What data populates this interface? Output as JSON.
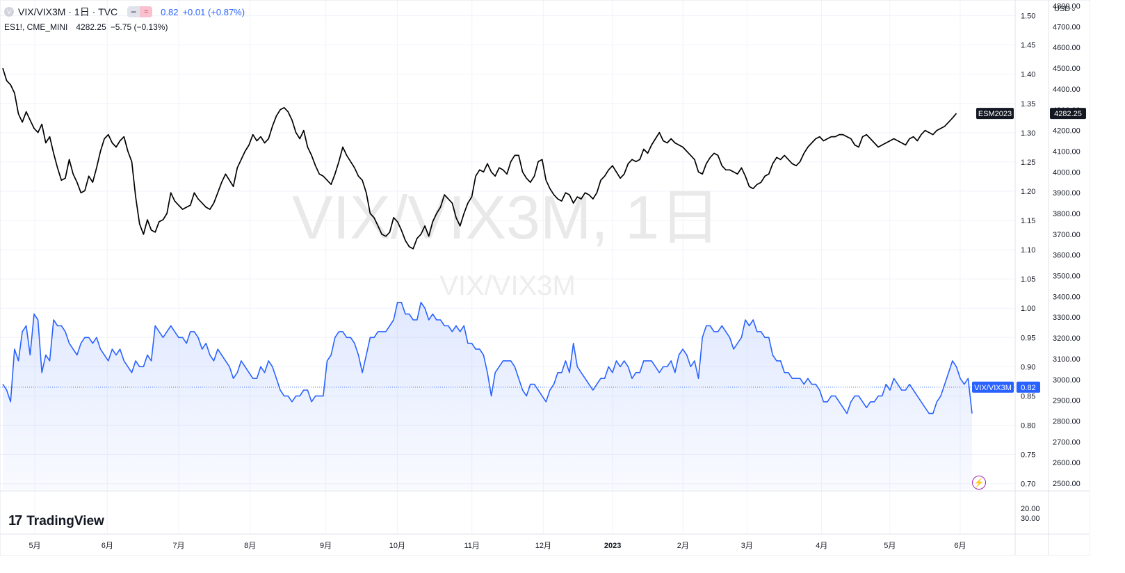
{
  "legend": {
    "main_symbol": "VIX/VIX3M · 1日 · TVC",
    "main_last": "0.82",
    "main_change": "+0.01 (+0.87%)",
    "compare_symbol": "ES1!, CME_MINI",
    "compare_last": "4282.25",
    "compare_change": "−5.75 (−0.13%)"
  },
  "watermark": {
    "big": "VIX/VIX3M, 1日",
    "small": "VIX/VIX3M"
  },
  "currency": "USD",
  "currency_chevron_icon": "chevron-down-icon",
  "brand": {
    "logo_mark": "17",
    "name": "TradingView"
  },
  "icons": {
    "symbol": "symbol-circle-icon",
    "bolt": "lightning-icon"
  },
  "colors": {
    "vix": "#2962ff",
    "es": "#000000",
    "fill": "#2962ff",
    "grid": "#f0f3fa",
    "es_label": "#131722"
  },
  "chart_data": {
    "type": "line",
    "x_ticks": [
      "5月",
      "6月",
      "7月",
      "8月",
      "9月",
      "10月",
      "11月",
      "12月",
      "2023",
      "2月",
      "3月",
      "4月",
      "5月",
      "6月"
    ],
    "y_ticks_left_scale": [
      "1.50",
      "1.45",
      "1.40",
      "1.35",
      "1.30",
      "1.25",
      "1.20",
      "1.15",
      "1.10",
      "1.05",
      "1.00",
      "0.95",
      "0.90",
      "0.85",
      "0.80",
      "0.75",
      "0.70"
    ],
    "y_ticks_right_scale": [
      "4800.00",
      "4700.00",
      "4600.00",
      "4500.00",
      "4400.00",
      "4300.00",
      "4200.00",
      "4100.00",
      "4000.00",
      "3900.00",
      "3800.00",
      "3700.00",
      "3600.00",
      "3500.00",
      "3400.00",
      "3300.00",
      "3200.00",
      "3100.00",
      "3000.00",
      "2900.00",
      "2800.00",
      "2700.00",
      "2600.00",
      "2500.00"
    ],
    "y_ticks_sub_pane": [
      "20.00",
      "30.00"
    ],
    "ylim_vix": [
      0.69,
      1.515
    ],
    "ylim_es": [
      2470,
      4795
    ],
    "series": [
      {
        "name": "VIX/VIX3M",
        "role": "area",
        "last_label": "0.82",
        "price_line": 0.865,
        "values": [
          0.87,
          0.86,
          0.84,
          0.93,
          0.91,
          0.96,
          0.97,
          0.92,
          0.99,
          0.98,
          0.89,
          0.92,
          0.91,
          0.98,
          0.97,
          0.97,
          0.96,
          0.94,
          0.93,
          0.92,
          0.94,
          0.95,
          0.95,
          0.94,
          0.95,
          0.93,
          0.92,
          0.91,
          0.93,
          0.92,
          0.93,
          0.91,
          0.9,
          0.89,
          0.91,
          0.9,
          0.9,
          0.92,
          0.91,
          0.97,
          0.96,
          0.95,
          0.96,
          0.97,
          0.96,
          0.95,
          0.95,
          0.94,
          0.96,
          0.96,
          0.95,
          0.93,
          0.94,
          0.92,
          0.91,
          0.93,
          0.92,
          0.91,
          0.9,
          0.88,
          0.89,
          0.91,
          0.9,
          0.89,
          0.88,
          0.88,
          0.9,
          0.89,
          0.91,
          0.9,
          0.88,
          0.86,
          0.85,
          0.85,
          0.84,
          0.85,
          0.85,
          0.86,
          0.86,
          0.84,
          0.85,
          0.85,
          0.85,
          0.91,
          0.92,
          0.95,
          0.96,
          0.96,
          0.95,
          0.95,
          0.94,
          0.92,
          0.89,
          0.92,
          0.95,
          0.95,
          0.96,
          0.96,
          0.96,
          0.97,
          0.98,
          1.01,
          1.01,
          0.99,
          0.99,
          0.98,
          0.98,
          1.01,
          1.0,
          0.98,
          0.99,
          0.98,
          0.98,
          0.97,
          0.97,
          0.96,
          0.97,
          0.96,
          0.97,
          0.94,
          0.94,
          0.93,
          0.93,
          0.92,
          0.89,
          0.85,
          0.89,
          0.9,
          0.91,
          0.91,
          0.91,
          0.9,
          0.88,
          0.86,
          0.85,
          0.87,
          0.87,
          0.86,
          0.85,
          0.84,
          0.86,
          0.87,
          0.89,
          0.89,
          0.91,
          0.89,
          0.94,
          0.9,
          0.89,
          0.88,
          0.87,
          0.86,
          0.87,
          0.88,
          0.88,
          0.9,
          0.89,
          0.91,
          0.9,
          0.91,
          0.9,
          0.88,
          0.89,
          0.89,
          0.91,
          0.91,
          0.91,
          0.9,
          0.89,
          0.9,
          0.9,
          0.91,
          0.89,
          0.92,
          0.93,
          0.92,
          0.9,
          0.91,
          0.88,
          0.95,
          0.97,
          0.97,
          0.96,
          0.96,
          0.97,
          0.96,
          0.95,
          0.93,
          0.94,
          0.95,
          0.98,
          0.97,
          0.98,
          0.96,
          0.96,
          0.95,
          0.95,
          0.92,
          0.91,
          0.91,
          0.89,
          0.89,
          0.88,
          0.88,
          0.88,
          0.87,
          0.88,
          0.87,
          0.87,
          0.86,
          0.84,
          0.84,
          0.85,
          0.85,
          0.84,
          0.83,
          0.82,
          0.84,
          0.85,
          0.85,
          0.84,
          0.83,
          0.84,
          0.84,
          0.85,
          0.85,
          0.87,
          0.86,
          0.88,
          0.87,
          0.86,
          0.86,
          0.87,
          0.86,
          0.85,
          0.84,
          0.83,
          0.82,
          0.82,
          0.84,
          0.85,
          0.87,
          0.89,
          0.91,
          0.9,
          0.88,
          0.87,
          0.88,
          0.82
        ]
      },
      {
        "name": "ESM2023",
        "role": "line",
        "last_label": "4282.25",
        "values": [
          4500,
          4440,
          4420,
          4380,
          4280,
          4240,
          4290,
          4250,
          4210,
          4190,
          4230,
          4140,
          4170,
          4090,
          4020,
          3960,
          3970,
          4060,
          3990,
          3950,
          3900,
          3910,
          3980,
          3950,
          4020,
          4100,
          4160,
          4180,
          4140,
          4120,
          4150,
          4170,
          4100,
          4050,
          3880,
          3750,
          3700,
          3770,
          3720,
          3710,
          3760,
          3770,
          3800,
          3900,
          3860,
          3840,
          3820,
          3830,
          3840,
          3900,
          3870,
          3850,
          3830,
          3820,
          3850,
          3900,
          3950,
          3990,
          3960,
          3930,
          4020,
          4060,
          4100,
          4130,
          4180,
          4150,
          4170,
          4140,
          4160,
          4220,
          4270,
          4300,
          4310,
          4290,
          4250,
          4190,
          4160,
          4200,
          4120,
          4080,
          4030,
          3990,
          3980,
          3960,
          3940,
          3990,
          4050,
          4120,
          4080,
          4050,
          4020,
          3980,
          3960,
          3900,
          3800,
          3780,
          3740,
          3700,
          3690,
          3710,
          3780,
          3760,
          3720,
          3670,
          3640,
          3630,
          3680,
          3700,
          3740,
          3690,
          3760,
          3800,
          3830,
          3890,
          3870,
          3850,
          3780,
          3740,
          3800,
          3850,
          3880,
          3980,
          4010,
          4000,
          4040,
          4000,
          3980,
          4020,
          4010,
          3990,
          4050,
          4080,
          4080,
          4000,
          3970,
          3950,
          3980,
          4050,
          4060,
          3960,
          3920,
          3890,
          3870,
          3860,
          3900,
          3890,
          3850,
          3880,
          3870,
          3900,
          3890,
          3870,
          3900,
          3960,
          3980,
          4010,
          4030,
          4000,
          3970,
          3990,
          4040,
          4060,
          4050,
          4060,
          4110,
          4090,
          4130,
          4160,
          4190,
          4150,
          4140,
          4160,
          4140,
          4130,
          4120,
          4100,
          4080,
          4060,
          4000,
          3990,
          4040,
          4070,
          4090,
          4080,
          4030,
          4010,
          4010,
          4000,
          3990,
          4020,
          3980,
          3930,
          3920,
          3940,
          3950,
          3980,
          3990,
          4040,
          4070,
          4060,
          4080,
          4060,
          4040,
          4030,
          4050,
          4090,
          4120,
          4140,
          4160,
          4170,
          4150,
          4160,
          4170,
          4170,
          4180,
          4180,
          4170,
          4160,
          4130,
          4120,
          4170,
          4180,
          4160,
          4140,
          4120,
          4130,
          4140,
          4150,
          4160,
          4150,
          4140,
          4130,
          4160,
          4170,
          4150,
          4180,
          4200,
          4190,
          4180,
          4200,
          4210,
          4220,
          4240,
          4260,
          4282
        ]
      }
    ]
  }
}
